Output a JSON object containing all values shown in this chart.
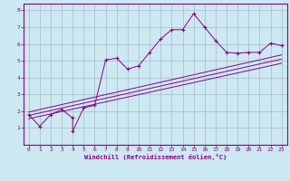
{
  "xlabel": "Windchill (Refroidissement éolien,°C)",
  "bg_color": "#cce8f0",
  "line_color": "#880088",
  "grid_color": "#aabbcc",
  "xlim": [
    -0.5,
    23.5
  ],
  "ylim": [
    0,
    8.4
  ],
  "xticks": [
    0,
    1,
    2,
    3,
    4,
    5,
    6,
    7,
    8,
    9,
    10,
    11,
    12,
    13,
    14,
    15,
    16,
    17,
    18,
    19,
    20,
    21,
    22,
    23
  ],
  "yticks": [
    1,
    2,
    3,
    4,
    5,
    6,
    7,
    8
  ],
  "series1_x": [
    0,
    1,
    2,
    3,
    4,
    4,
    5,
    6,
    7,
    8,
    9,
    10,
    11,
    12,
    13,
    14,
    15,
    16,
    17,
    18,
    19,
    20,
    21,
    22,
    23
  ],
  "series1_y": [
    1.8,
    1.1,
    1.8,
    2.1,
    1.6,
    0.8,
    2.2,
    2.35,
    5.05,
    5.15,
    4.5,
    4.7,
    5.5,
    6.3,
    6.85,
    6.85,
    7.8,
    7.0,
    6.2,
    5.5,
    5.45,
    5.5,
    5.5,
    6.05,
    5.9
  ],
  "line1_x": [
    0,
    23
  ],
  "line1_y": [
    1.55,
    4.85
  ],
  "line2_x": [
    0,
    23
  ],
  "line2_y": [
    1.75,
    5.1
  ],
  "line3_x": [
    0,
    23
  ],
  "line3_y": [
    1.95,
    5.35
  ]
}
